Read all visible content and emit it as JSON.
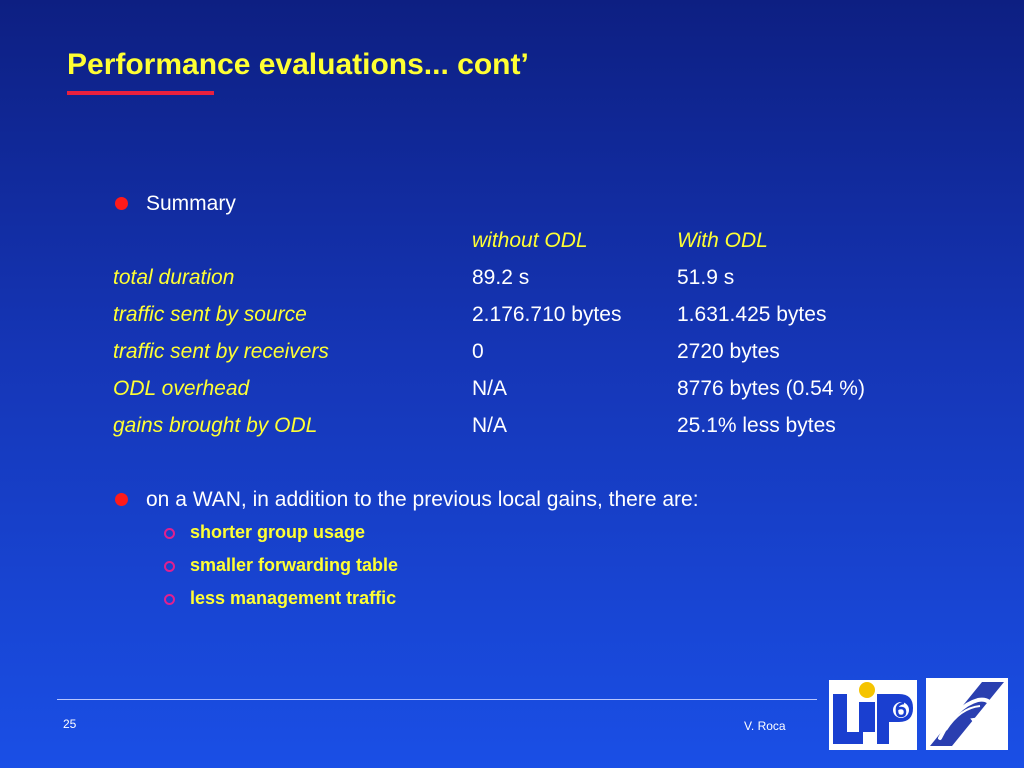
{
  "slide": {
    "title": "Performance evaluations... cont’"
  },
  "summary": {
    "bullet_label": "Summary",
    "columns": [
      "without ODL",
      "With ODL"
    ],
    "rows": [
      {
        "label": "total duration",
        "without": "89.2 s",
        "with": "51.9 s"
      },
      {
        "label": "traffic sent by source",
        "without": "2.176.710 bytes",
        "with": "1.631.425 bytes"
      },
      {
        "label": "traffic sent by receivers",
        "without": "0",
        "with": "2720 bytes"
      },
      {
        "label": "ODL overhead",
        "without": "N/A",
        "with": "8776 bytes (0.54 %)"
      },
      {
        "label": "gains brought by ODL",
        "without": "N/A",
        "with": "25.1% less bytes"
      }
    ]
  },
  "wan": {
    "bullet_text": "on a WAN, in addition to the previous local gains, there are:",
    "sub_items": [
      "shorter group usage",
      "smaller forwarding table",
      "less management traffic"
    ]
  },
  "footer": {
    "page_number": "25",
    "author": "V. Roca"
  },
  "logos": {
    "lip6_text": "LIP6"
  },
  "colors": {
    "title": "#ffff33",
    "accent_red": "#e8203f",
    "sub_bullet": "#e0208f",
    "background_top": "#0d1f82",
    "background_bottom": "#1a4fe6"
  }
}
